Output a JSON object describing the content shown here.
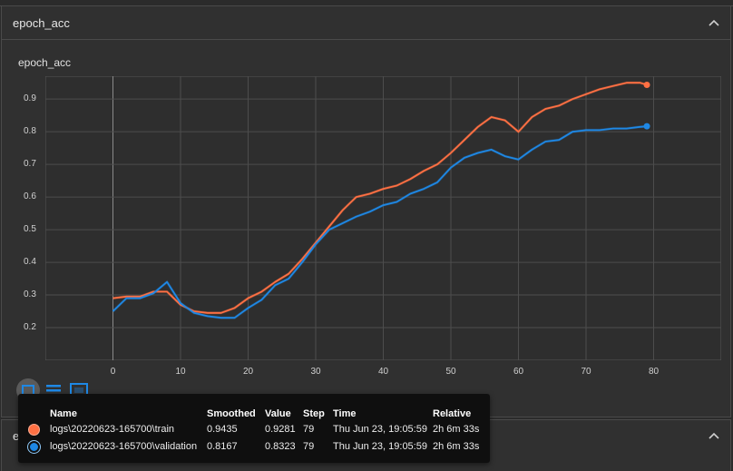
{
  "card1": {
    "title": "epoch_acc"
  },
  "card2": {
    "title": "epoch_loss"
  },
  "chart_data": {
    "type": "line",
    "title": "epoch_acc",
    "xlabel": "",
    "ylabel": "",
    "xlim": [
      -10,
      90
    ],
    "ylim": [
      0.1,
      0.97
    ],
    "xticks": [
      0,
      10,
      20,
      30,
      40,
      50,
      60,
      70,
      80
    ],
    "yticks": [
      0.2,
      0.3,
      0.4,
      0.5,
      0.6,
      0.7,
      0.8,
      0.9
    ],
    "grid": true,
    "series": [
      {
        "name": "logs\\20220623-165700\\train",
        "color": "#ff7043",
        "x": [
          0,
          2,
          4,
          6,
          8,
          10,
          12,
          14,
          16,
          18,
          20,
          22,
          24,
          26,
          28,
          30,
          32,
          34,
          36,
          38,
          40,
          42,
          44,
          46,
          48,
          50,
          52,
          54,
          56,
          58,
          60,
          62,
          64,
          66,
          68,
          70,
          72,
          74,
          76,
          78,
          79
        ],
        "y": [
          0.29,
          0.295,
          0.295,
          0.31,
          0.31,
          0.27,
          0.25,
          0.245,
          0.245,
          0.26,
          0.29,
          0.31,
          0.34,
          0.365,
          0.41,
          0.46,
          0.51,
          0.56,
          0.6,
          0.61,
          0.625,
          0.635,
          0.655,
          0.68,
          0.7,
          0.735,
          0.775,
          0.815,
          0.845,
          0.835,
          0.8,
          0.845,
          0.87,
          0.88,
          0.9,
          0.915,
          0.93,
          0.94,
          0.95,
          0.95,
          0.9435
        ]
      },
      {
        "name": "logs\\20220623-165700\\validation",
        "color": "#1e88e5",
        "x": [
          0,
          2,
          4,
          6,
          8,
          10,
          12,
          14,
          16,
          18,
          20,
          22,
          24,
          26,
          28,
          30,
          32,
          34,
          36,
          38,
          40,
          42,
          44,
          46,
          48,
          50,
          52,
          54,
          56,
          58,
          60,
          62,
          64,
          66,
          68,
          70,
          72,
          74,
          76,
          78,
          79
        ],
        "y": [
          0.25,
          0.29,
          0.29,
          0.305,
          0.34,
          0.275,
          0.245,
          0.235,
          0.23,
          0.23,
          0.26,
          0.285,
          0.33,
          0.35,
          0.4,
          0.455,
          0.5,
          0.52,
          0.54,
          0.555,
          0.575,
          0.585,
          0.61,
          0.625,
          0.645,
          0.69,
          0.72,
          0.735,
          0.745,
          0.725,
          0.715,
          0.745,
          0.77,
          0.775,
          0.8,
          0.805,
          0.805,
          0.81,
          0.81,
          0.815,
          0.8167
        ]
      }
    ]
  },
  "tooltip": {
    "headers": {
      "name": "Name",
      "smoothed": "Smoothed",
      "value": "Value",
      "step": "Step",
      "time": "Time",
      "relative": "Relative"
    },
    "rows": [
      {
        "color": "#ff7043",
        "name": "logs\\20220623-165700\\train",
        "smoothed": "0.9435",
        "value": "0.9281",
        "step": "79",
        "time": "Thu Jun 23, 19:05:59",
        "relative": "2h 6m 33s"
      },
      {
        "color": "#1e88e5",
        "name": "logs\\20220623-165700\\validation",
        "smoothed": "0.8167",
        "value": "0.8323",
        "step": "79",
        "time": "Thu Jun 23, 19:05:59",
        "relative": "2h 6m 33s"
      }
    ]
  }
}
